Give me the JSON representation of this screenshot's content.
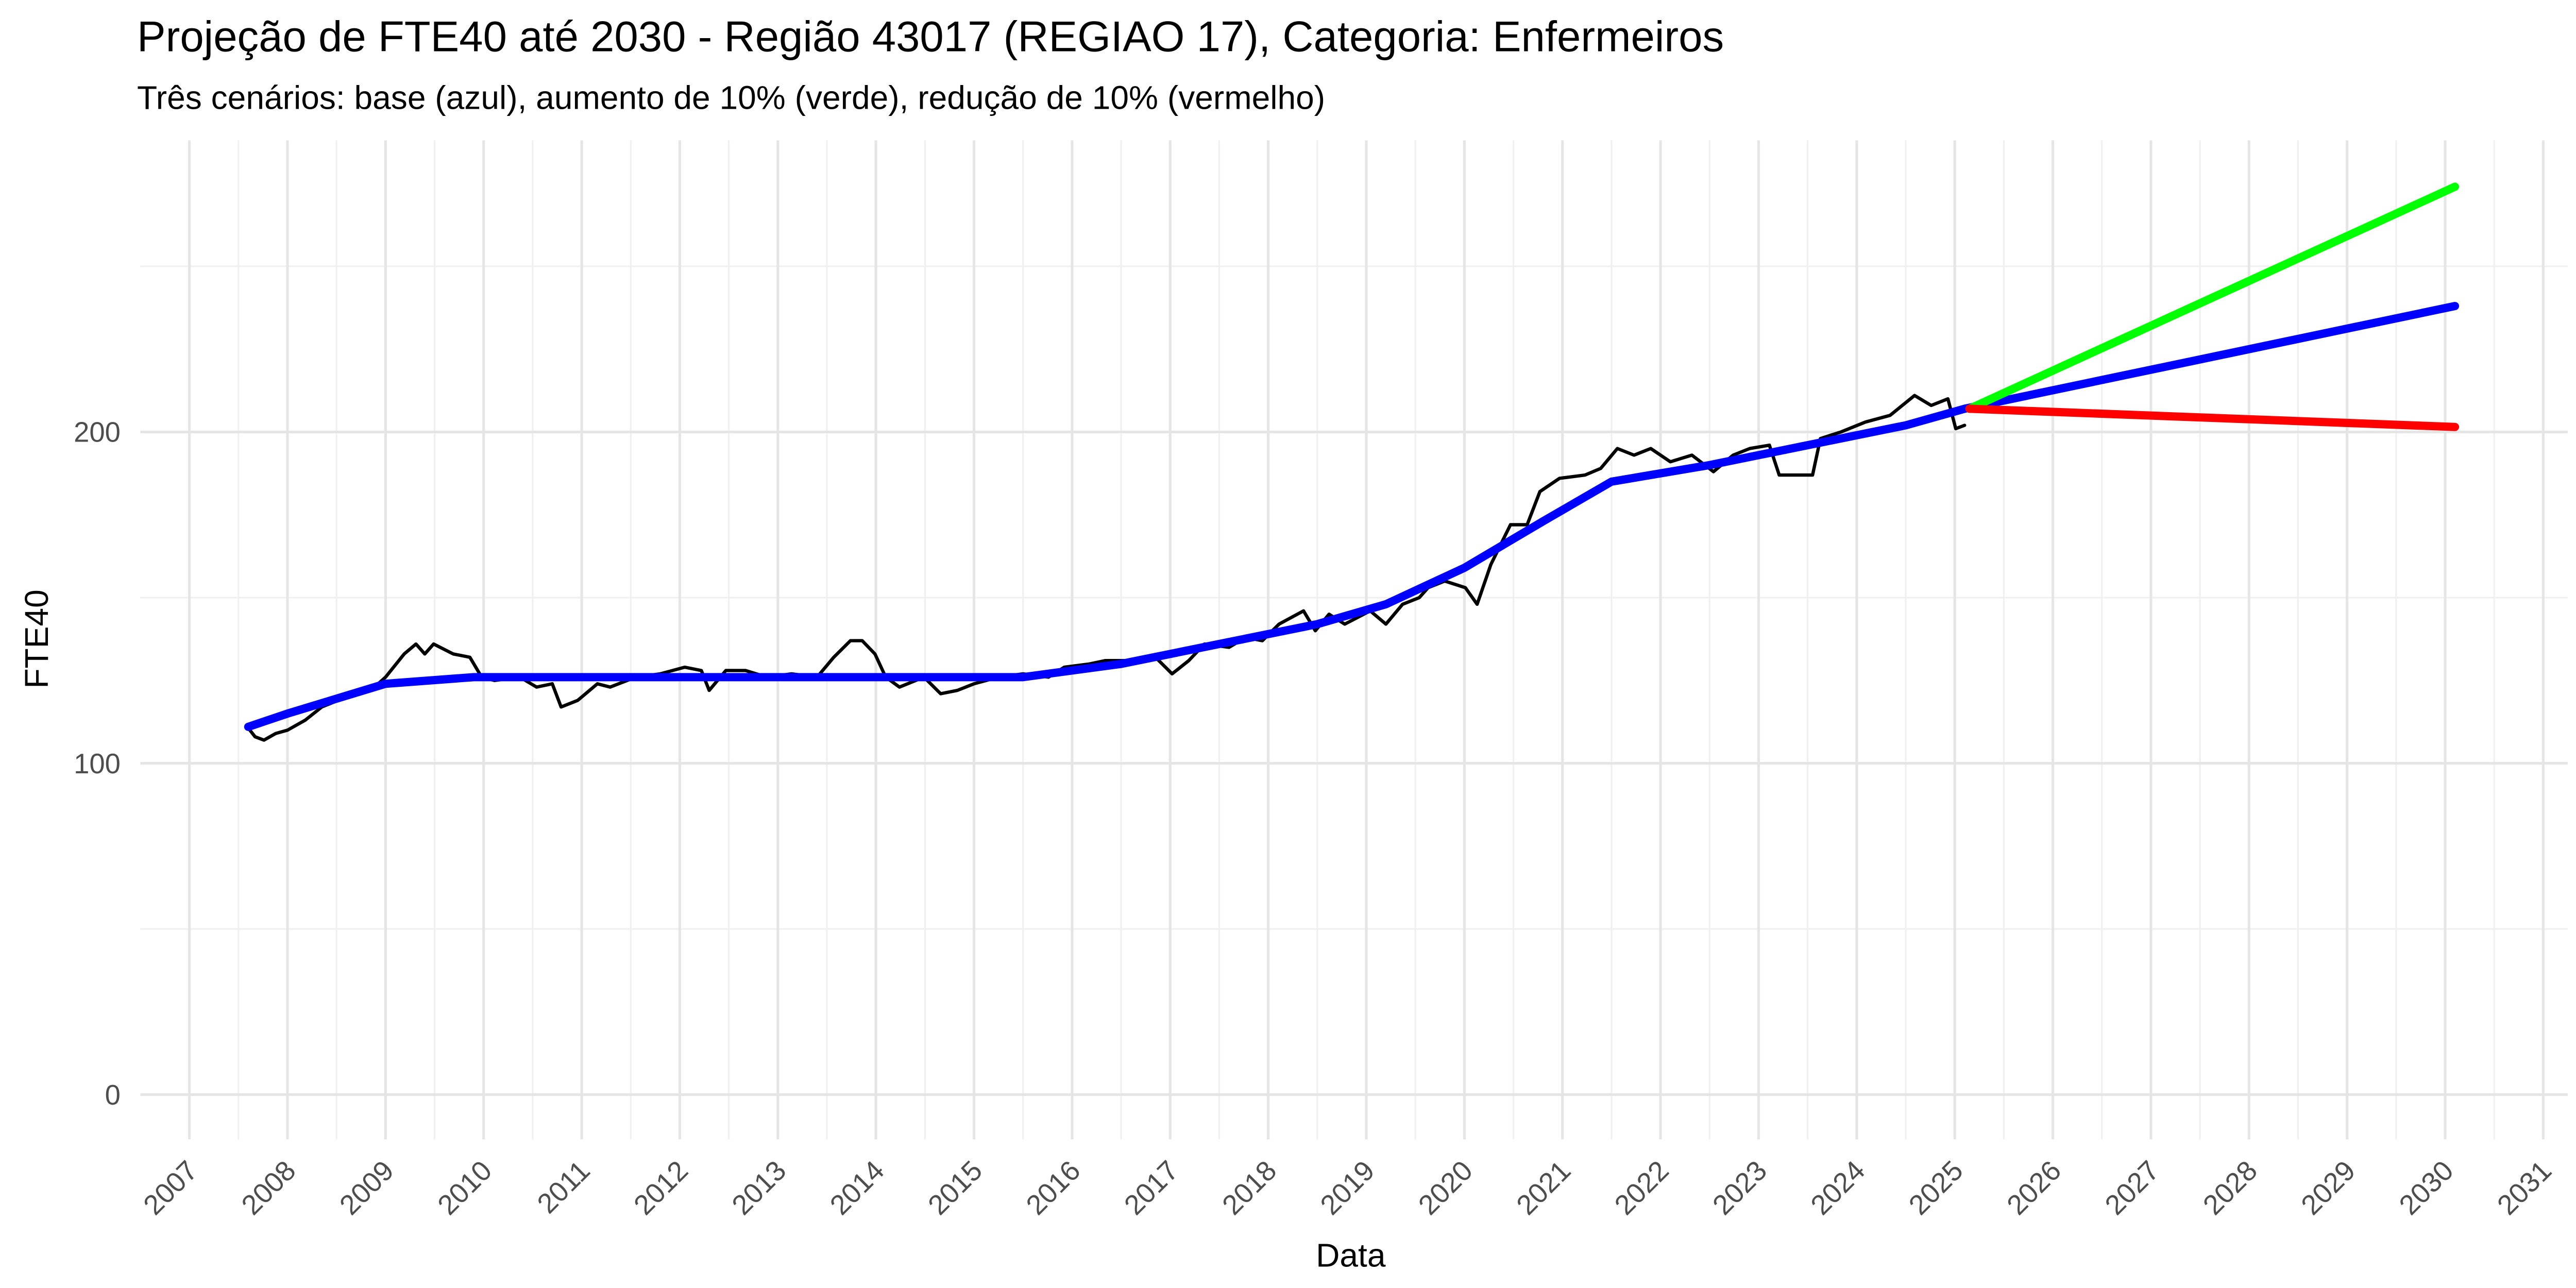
{
  "chart_data": {
    "type": "line",
    "title": "Projeção de FTE40 até 2030 - Região 43017 (REGIAO 17), Categoria: Enfermeiros",
    "subtitle": "Três cenários: base (azul), aumento de 10% (verde), redução de 10% (vermelho)",
    "x_label": "Data",
    "y_label": "FTE40",
    "xlim": [
      2006.5,
      2031.25
    ],
    "ylim": [
      -13.5,
      288
    ],
    "xticks": [
      2007,
      2008,
      2009,
      2010,
      2011,
      2012,
      2013,
      2014,
      2015,
      2016,
      2017,
      2018,
      2019,
      2020,
      2021,
      2022,
      2023,
      2024,
      2025,
      2026,
      2027,
      2028,
      2029,
      2030,
      2031
    ],
    "yticks": [
      0,
      100,
      200
    ],
    "grid": true,
    "series": [
      {
        "color": "#000000",
        "x": [
          2007.59,
          2007.67,
          2007.76,
          2007.88,
          2008.0,
          2008.18,
          2008.35,
          2008.6,
          2008.85,
          2009.0,
          2009.19,
          2009.31,
          2009.4,
          2009.49,
          2009.69,
          2009.86,
          2009.98,
          2010.11,
          2010.37,
          2010.54,
          2010.7,
          2010.79,
          2010.96,
          2011.16,
          2011.29,
          2011.55,
          2011.8,
          2012.05,
          2012.22,
          2012.3,
          2012.47,
          2012.67,
          2012.89,
          2013.14,
          2013.4,
          2013.57,
          2013.74,
          2013.86,
          2013.99,
          2014.1,
          2014.24,
          2014.49,
          2014.66,
          2014.83,
          2015.0,
          2015.25,
          2015.5,
          2015.76,
          2015.92,
          2016.18,
          2016.34,
          2016.6,
          2016.85,
          2017.02,
          2017.19,
          2017.35,
          2017.6,
          2017.77,
          2017.94,
          2018.11,
          2018.36,
          2018.48,
          2018.62,
          2018.78,
          2019.04,
          2019.2,
          2019.37,
          2019.54,
          2019.63,
          2019.8,
          2020.01,
          2020.13,
          2020.27,
          2020.47,
          2020.64,
          2020.77,
          2020.97,
          2021.23,
          2021.39,
          2021.56,
          2021.73,
          2021.9,
          2022.1,
          2022.32,
          2022.54,
          2022.74,
          2022.91,
          2023.11,
          2023.21,
          2023.41,
          2023.55,
          2023.63,
          2023.84,
          2024.09,
          2024.34,
          2024.59,
          2024.76,
          2024.93,
          2025.01,
          2025.1
        ],
        "values": [
          111,
          108,
          107,
          109,
          110,
          113,
          117,
          120,
          122,
          126,
          133,
          136,
          133,
          136,
          133,
          132,
          126,
          125,
          126,
          123,
          124,
          117,
          119,
          124,
          123,
          126,
          127,
          129,
          128,
          122,
          128,
          128,
          126,
          127,
          126,
          132,
          137,
          137,
          133,
          126,
          123,
          126,
          121,
          122,
          124,
          126,
          127,
          126,
          129,
          130,
          131,
          131,
          132,
          127,
          131,
          136,
          135,
          138,
          137,
          142,
          146,
          140,
          145,
          142,
          146,
          142,
          148,
          150,
          153,
          155,
          153,
          148,
          160,
          172,
          172,
          182,
          186,
          187,
          189,
          195,
          193,
          195,
          191,
          193,
          188,
          193,
          195,
          196,
          187,
          187,
          187,
          198,
          200,
          203,
          205,
          211,
          208,
          210,
          201,
          202
        ]
      },
      {
        "color": "#0000ff",
        "x": [
          2007.6,
          2008.0,
          2009.0,
          2009.9,
          2015.5,
          2016.5,
          2017.5,
          2018.5,
          2019.2,
          2020.0,
          2020.8,
          2021.5,
          2022.5,
          2023.5,
          2024.5,
          2025.1,
          2030.1
        ],
        "values": [
          111,
          115,
          124,
          126,
          126,
          130,
          136,
          142,
          148,
          159,
          173,
          185,
          190,
          196,
          202,
          207,
          238
        ]
      },
      {
        "color": "#00ff00",
        "x": [
          2025.15,
          2030.1
        ],
        "values": [
          207,
          274
        ]
      },
      {
        "color": "#ff0000",
        "x": [
          2025.15,
          2030.1
        ],
        "values": [
          207,
          201.5
        ]
      }
    ]
  }
}
